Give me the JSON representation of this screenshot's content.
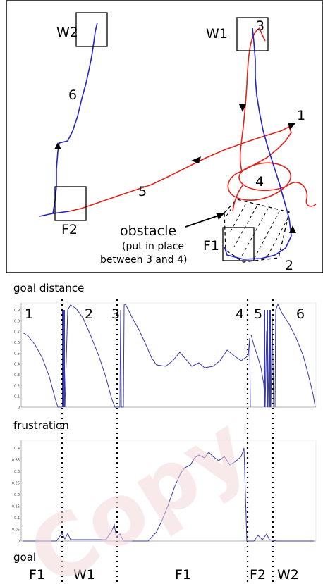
{
  "map": {
    "waypoints": {
      "w1": "W1",
      "w2": "W2",
      "f1": "F1",
      "f2": "F2"
    },
    "segments": {
      "s1": "1",
      "s2": "2",
      "s3": "3",
      "s4": "4",
      "s5": "5",
      "s6": "6"
    },
    "obstacle_label": "obstacle",
    "obstacle_note_1": "(put in place",
    "obstacle_note_2": "between 3 and 4)",
    "colors": {
      "red_path": "#e2231a",
      "blue_path": "#2323c8",
      "frame": "#000000"
    }
  },
  "plot_goal_distance": {
    "title": "goal distance",
    "yticks": [
      "0.9",
      "0.8",
      "0.7",
      "0.6",
      "0.5",
      "0.4",
      "0.3",
      "0.2",
      "0.1",
      "0"
    ],
    "segments": [
      "1",
      "2",
      "3",
      "4",
      "5",
      "6"
    ],
    "color": "#3a3aa8"
  },
  "plot_frustration": {
    "title": "frustration",
    "yticks": [
      "0.4",
      "0.35",
      "0.3",
      "0.25",
      "0.2",
      "0.15",
      "0.1",
      "0.05",
      "0"
    ],
    "color": "#3a3aa8"
  },
  "goal_row": {
    "title": "goal",
    "labels": [
      "F1",
      "W1",
      "F1",
      "F2",
      "W2"
    ]
  },
  "watermark": "Copy"
}
